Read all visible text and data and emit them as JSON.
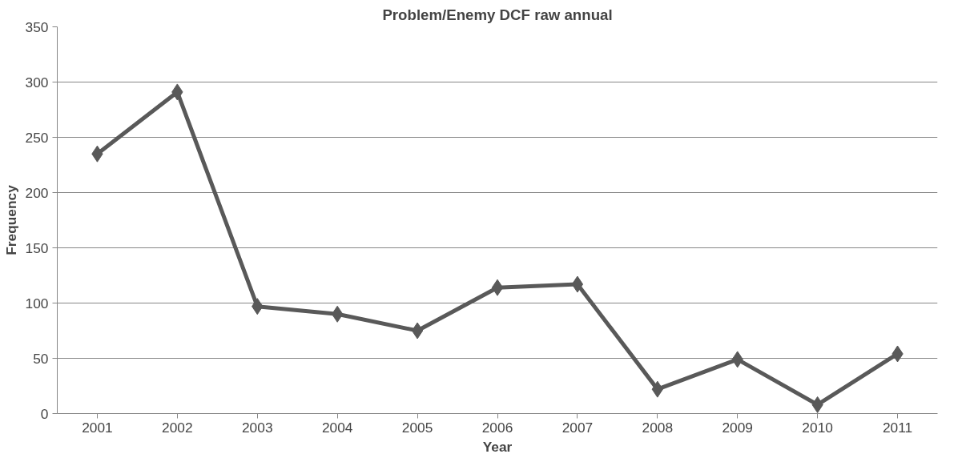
{
  "chart_data": {
    "type": "line",
    "title": "Problem/Enemy DCF raw annual",
    "xlabel": "Year",
    "ylabel": "Frequency",
    "categories": [
      "2001",
      "2002",
      "2003",
      "2004",
      "2005",
      "2006",
      "2007",
      "2008",
      "2009",
      "2010",
      "2011"
    ],
    "series": [
      {
        "color": "#595959",
        "values": [
          235,
          291,
          97,
          90,
          75,
          114,
          117,
          22,
          49,
          8,
          54
        ]
      }
    ],
    "ylim": [
      0,
      350
    ],
    "yticks": [
      0,
      50,
      100,
      150,
      200,
      250,
      300,
      350
    ],
    "grid": "y",
    "marker": "diamond",
    "line_style": "solid"
  }
}
